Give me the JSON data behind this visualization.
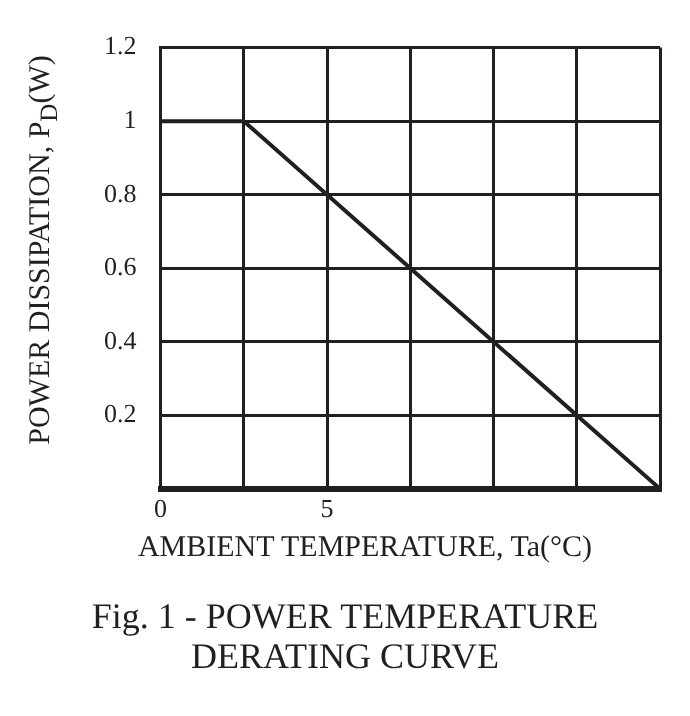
{
  "chart_data": {
    "type": "line",
    "title": "Fig. 1 - POWER TEMPERATURE\nDERATING CURVE",
    "xlabel": "AMBIENT TEMPERATURE, Ta(°C)",
    "ylabel": "POWER DISSIPATION, P$_{D}$(W)",
    "x": [
      0,
      2.5,
      15
    ],
    "series": [
      {
        "color": "#231f20",
        "values": [
          1,
          1,
          0
        ]
      }
    ],
    "xlim": [
      0,
      15
    ],
    "xticks": [
      0,
      {
        "value": 2.5,
        "label": null
      },
      5,
      {
        "value": 7.5,
        "label": null
      },
      {
        "value": 10,
        "label": null
      },
      {
        "value": 12.5,
        "label": null
      },
      {
        "value": 15,
        "label": null
      }
    ],
    "ylim": [
      0,
      1.2
    ],
    "yticks": [
      {
        "value": 0,
        "label": null
      },
      0.2,
      0.4,
      0.6,
      0.8,
      1,
      1.2
    ],
    "grid": true,
    "legend": false,
    "marker": "none",
    "line_style": "solid"
  }
}
